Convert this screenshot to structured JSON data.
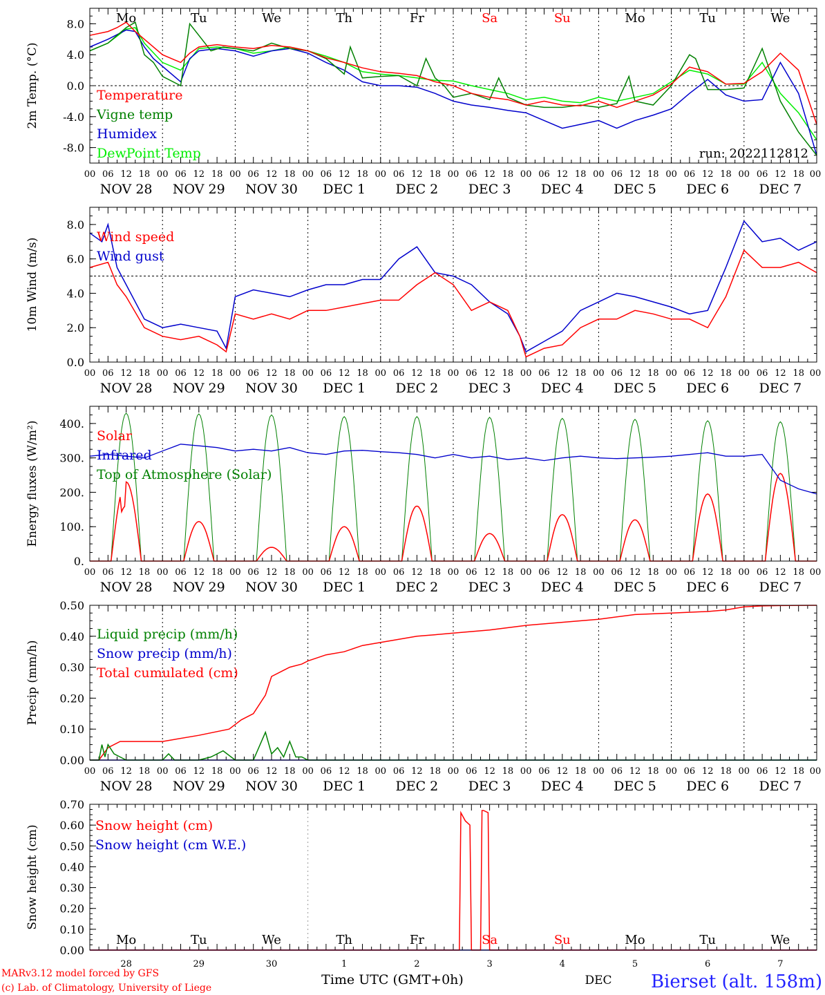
{
  "chart_data": [
    {
      "type": "line",
      "ylabel": "2m Temp. (°C)",
      "ylim": [
        -10,
        10
      ],
      "yticks": [
        -8,
        -4,
        0,
        4,
        8
      ],
      "ytick_labels": [
        "-8.0",
        "-4.0",
        "0.0",
        "4.0",
        "8.0"
      ],
      "x_unit": "hours since NOV 28 00 UTC",
      "xlim": [
        0,
        240
      ],
      "zero_line": 0,
      "weekday_labels": [
        "Mo",
        "Tu",
        "We",
        "Th",
        "Fr",
        "Sa",
        "Su",
        "Mo",
        "Tu",
        "We"
      ],
      "weekday_colors": [
        "#000000",
        "#000000",
        "#000000",
        "#000000",
        "#000000",
        "#ff0000",
        "#ff0000",
        "#000000",
        "#000000",
        "#000000"
      ],
      "run_label": "run: 2022112812",
      "legend": "top-left",
      "series": [
        {
          "name": "Temperature",
          "color": "#ff0000",
          "x": [
            0,
            6,
            9,
            12,
            15,
            18,
            24,
            30,
            33,
            36,
            42,
            48,
            54,
            60,
            66,
            72,
            78,
            84,
            90,
            96,
            102,
            108,
            114,
            120,
            126,
            132,
            138,
            144,
            150,
            156,
            162,
            168,
            174,
            180,
            186,
            192,
            198,
            204,
            210,
            216,
            222,
            228,
            234,
            240
          ],
          "y": [
            6.5,
            7.0,
            7.5,
            8.2,
            7.0,
            6.0,
            4.0,
            3.0,
            4.2,
            5.0,
            5.3,
            5.0,
            4.8,
            5.2,
            5.0,
            4.5,
            3.6,
            3.0,
            2.3,
            1.8,
            1.6,
            1.3,
            0.5,
            0.0,
            -1.0,
            -1.5,
            -1.8,
            -2.5,
            -2.0,
            -2.5,
            -2.6,
            -2.0,
            -2.8,
            -2.0,
            -1.2,
            0.2,
            2.4,
            1.8,
            0.2,
            0.3,
            1.8,
            4.2,
            2.0,
            -5.0
          ]
        },
        {
          "name": "Vigne temp",
          "color": "#008000",
          "x": [
            0,
            6,
            12,
            15,
            18,
            21,
            24,
            30,
            33,
            36,
            40,
            44,
            48,
            54,
            60,
            66,
            72,
            78,
            84,
            86,
            88,
            90,
            96,
            102,
            108,
            111,
            114,
            117,
            120,
            126,
            132,
            135,
            138,
            144,
            150,
            156,
            162,
            168,
            174,
            178,
            180,
            186,
            192,
            198,
            200,
            204,
            210,
            216,
            222,
            228,
            234,
            240
          ],
          "y": [
            4.5,
            5.5,
            7.5,
            8.2,
            4.0,
            3.0,
            1.2,
            0.0,
            8.0,
            6.5,
            4.5,
            5.0,
            4.8,
            4.5,
            5.5,
            4.8,
            4.5,
            3.5,
            1.5,
            5.0,
            3.0,
            1.0,
            1.2,
            1.3,
            0.0,
            3.5,
            1.0,
            0.0,
            -1.5,
            -1.0,
            -1.8,
            1.0,
            -1.5,
            -2.5,
            -2.8,
            -2.8,
            -2.5,
            -2.8,
            -2.3,
            1.2,
            -2.0,
            -2.5,
            0.0,
            4.0,
            3.5,
            -0.5,
            -0.5,
            -0.3,
            4.8,
            -2.0,
            -6.0,
            -9.0
          ]
        },
        {
          "name": "Humidex",
          "color": "#0000cc",
          "x": [
            0,
            6,
            12,
            15,
            18,
            21,
            24,
            30,
            33,
            36,
            42,
            48,
            54,
            60,
            66,
            72,
            78,
            84,
            90,
            96,
            102,
            108,
            114,
            120,
            126,
            132,
            138,
            144,
            150,
            156,
            162,
            168,
            174,
            180,
            186,
            192,
            198,
            204,
            210,
            216,
            222,
            228,
            234,
            240
          ],
          "y": [
            5.0,
            6.0,
            7.2,
            7.0,
            5.0,
            3.5,
            2.5,
            0.5,
            3.5,
            4.5,
            4.8,
            4.5,
            3.8,
            4.5,
            4.8,
            4.2,
            3.0,
            2.0,
            0.5,
            0.0,
            0.0,
            -0.2,
            -1.0,
            -2.0,
            -2.5,
            -2.8,
            -3.2,
            -3.5,
            -4.5,
            -5.5,
            -5.0,
            -4.5,
            -5.5,
            -4.5,
            -3.8,
            -3.0,
            -1.0,
            0.8,
            -1.2,
            -2.0,
            -1.8,
            3.0,
            -1.0,
            -9.0
          ]
        },
        {
          "name": "DewPoint Temp",
          "color": "#00ee00",
          "x": [
            0,
            6,
            12,
            15,
            18,
            24,
            30,
            36,
            42,
            48,
            54,
            60,
            66,
            72,
            78,
            84,
            90,
            96,
            102,
            108,
            114,
            120,
            126,
            132,
            138,
            144,
            150,
            156,
            162,
            168,
            174,
            180,
            186,
            192,
            198,
            204,
            210,
            216,
            222,
            228,
            234,
            240
          ],
          "y": [
            4.5,
            5.5,
            7.3,
            7.5,
            5.5,
            3.0,
            2.0,
            4.8,
            5.0,
            4.8,
            4.2,
            4.5,
            5.0,
            4.5,
            3.8,
            3.0,
            1.8,
            1.5,
            1.3,
            1.0,
            0.7,
            0.6,
            0.0,
            -0.5,
            -1.0,
            -1.8,
            -1.5,
            -2.0,
            -2.2,
            -1.5,
            -2.0,
            -1.5,
            -1.0,
            0.5,
            2.0,
            1.5,
            0.2,
            0.2,
            3.0,
            -1.0,
            -3.5,
            -7.0
          ]
        }
      ]
    },
    {
      "type": "line",
      "ylabel": "10m Wind (m/s)",
      "ylim": [
        0,
        9
      ],
      "yticks": [
        0,
        2,
        4,
        6,
        8
      ],
      "ytick_labels": [
        "0.0",
        "2.0",
        "4.0",
        "6.0",
        "8.0"
      ],
      "xlim": [
        0,
        240
      ],
      "zero_line": 5,
      "legend": "top-left",
      "series": [
        {
          "name": "Wind speed",
          "color": "#ff0000",
          "x": [
            0,
            6,
            9,
            12,
            18,
            24,
            30,
            36,
            42,
            45,
            48,
            54,
            60,
            66,
            72,
            78,
            84,
            90,
            96,
            102,
            108,
            114,
            120,
            126,
            132,
            138,
            142,
            144,
            150,
            156,
            162,
            168,
            174,
            180,
            186,
            192,
            198,
            204,
            210,
            216,
            222,
            228,
            234,
            240
          ],
          "y": [
            5.5,
            5.8,
            4.5,
            3.8,
            2.0,
            1.5,
            1.3,
            1.5,
            1.0,
            0.6,
            2.8,
            2.5,
            2.8,
            2.5,
            3.0,
            3.0,
            3.2,
            3.4,
            3.6,
            3.6,
            4.5,
            5.2,
            4.5,
            3.0,
            3.5,
            3.0,
            1.5,
            0.3,
            0.8,
            1.0,
            2.0,
            2.5,
            2.5,
            3.0,
            2.8,
            2.5,
            2.5,
            2.0,
            3.8,
            6.5,
            5.5,
            5.5,
            5.8,
            5.2
          ]
        },
        {
          "name": "Wind gust",
          "color": "#0000cc",
          "x": [
            0,
            4,
            6,
            9,
            12,
            18,
            24,
            30,
            36,
            42,
            45,
            48,
            54,
            60,
            66,
            72,
            78,
            84,
            90,
            96,
            102,
            108,
            114,
            120,
            126,
            132,
            138,
            142,
            144,
            150,
            156,
            162,
            168,
            174,
            180,
            186,
            192,
            198,
            204,
            210,
            216,
            222,
            228,
            234,
            240
          ],
          "y": [
            7.5,
            7.0,
            8.0,
            5.5,
            4.5,
            2.5,
            2.0,
            2.2,
            2.0,
            1.8,
            0.8,
            3.8,
            4.2,
            4.0,
            3.8,
            4.2,
            4.5,
            4.5,
            4.8,
            4.8,
            6.0,
            6.7,
            5.2,
            5.0,
            4.5,
            3.5,
            2.8,
            1.5,
            0.6,
            1.2,
            1.8,
            3.0,
            3.5,
            4.0,
            3.8,
            3.5,
            3.2,
            2.8,
            3.0,
            5.5,
            8.2,
            7.0,
            7.2,
            6.5,
            7.0
          ]
        }
      ]
    },
    {
      "type": "line",
      "ylabel": "Energy fluxes (W/m²)",
      "ylim": [
        0,
        450
      ],
      "yticks": [
        0,
        100,
        200,
        300,
        400
      ],
      "ytick_labels": [
        "0.",
        "100.",
        "200.",
        "300.",
        "400."
      ],
      "xlim": [
        0,
        240
      ],
      "legend": "top-left",
      "solar_peaks": [
        230,
        115,
        40,
        100,
        160,
        80,
        135,
        120,
        195,
        255
      ],
      "toa_peaks": [
        430,
        428,
        425,
        420,
        420,
        418,
        415,
        412,
        408,
        405
      ],
      "series": [
        {
          "name": "Solar",
          "color": "#ff0000"
        },
        {
          "name": "Infrared",
          "color": "#0000cc",
          "x": [
            0,
            6,
            12,
            18,
            24,
            30,
            36,
            42,
            48,
            54,
            60,
            66,
            72,
            78,
            84,
            90,
            96,
            102,
            108,
            114,
            120,
            126,
            132,
            138,
            144,
            150,
            156,
            162,
            168,
            174,
            180,
            186,
            192,
            198,
            204,
            210,
            216,
            222,
            228,
            234,
            240
          ],
          "y": [
            305,
            310,
            305,
            300,
            320,
            340,
            335,
            330,
            320,
            325,
            320,
            330,
            315,
            310,
            320,
            322,
            318,
            315,
            310,
            300,
            310,
            300,
            305,
            295,
            300,
            292,
            300,
            305,
            300,
            298,
            300,
            302,
            305,
            310,
            315,
            305,
            305,
            310,
            235,
            210,
            195
          ]
        },
        {
          "name": "Top of Atmosphere (Solar)",
          "color": "#008000"
        }
      ]
    },
    {
      "type": "line",
      "ylabel": "Precip (mm/h)",
      "ylim": [
        0,
        0.5
      ],
      "yticks": [
        0,
        0.1,
        0.2,
        0.3,
        0.4,
        0.5
      ],
      "ytick_labels": [
        "0.00",
        "0.10",
        "0.20",
        "0.30",
        "0.40",
        "0.50"
      ],
      "xlim": [
        0,
        240
      ],
      "legend": "top-left",
      "series": [
        {
          "name": "Liquid precip (mm/h)",
          "color": "#008000",
          "x": [
            0,
            3,
            4,
            5,
            6,
            8,
            10,
            12,
            24,
            26,
            28,
            36,
            40,
            44,
            48,
            54,
            58,
            60,
            62,
            64,
            66,
            68,
            70,
            72,
            80,
            240
          ],
          "y": [
            0,
            0,
            0.05,
            0.01,
            0.05,
            0.02,
            0.01,
            0,
            0,
            0.02,
            0,
            0,
            0.01,
            0.03,
            0,
            0,
            0.09,
            0.02,
            0.04,
            0.01,
            0.06,
            0.01,
            0.01,
            0,
            0,
            0
          ]
        },
        {
          "name": "Snow precip (mm/h)",
          "color": "#0000cc",
          "x": [
            0,
            240
          ],
          "y": [
            0,
            0
          ]
        },
        {
          "name": "Total cumulated (cm)",
          "color": "#ff0000",
          "x": [
            0,
            3,
            6,
            10,
            24,
            36,
            46,
            50,
            54,
            58,
            60,
            64,
            66,
            70,
            72,
            78,
            84,
            90,
            96,
            102,
            108,
            114,
            120,
            132,
            144,
            156,
            168,
            180,
            192,
            204,
            210,
            216,
            222,
            228,
            240
          ],
          "y": [
            0,
            0,
            0.04,
            0.06,
            0.06,
            0.08,
            0.1,
            0.13,
            0.15,
            0.21,
            0.27,
            0.29,
            0.3,
            0.31,
            0.32,
            0.34,
            0.35,
            0.37,
            0.38,
            0.39,
            0.4,
            0.405,
            0.41,
            0.42,
            0.435,
            0.445,
            0.455,
            0.47,
            0.475,
            0.48,
            0.485,
            0.495,
            0.498,
            0.499,
            0.5
          ]
        }
      ]
    },
    {
      "type": "line",
      "ylabel": "Snow height (cm)",
      "ylim": [
        0,
        0.7
      ],
      "yticks": [
        0,
        0.1,
        0.2,
        0.3,
        0.4,
        0.5,
        0.6,
        0.7
      ],
      "ytick_labels": [
        "0.00",
        "0.10",
        "0.20",
        "0.30",
        "0.40",
        "0.50",
        "0.60",
        "0.70"
      ],
      "xlim": [
        0,
        240
      ],
      "legend": "top-left",
      "weekday_labels": [
        "Mo",
        "Tu",
        "We",
        "Th",
        "Fr",
        "Sa",
        "Su",
        "Mo",
        "Tu",
        "We"
      ],
      "weekday_colors": [
        "#000000",
        "#000000",
        "#000000",
        "#000000",
        "#000000",
        "#ff0000",
        "#ff0000",
        "#000000",
        "#000000",
        "#000000"
      ],
      "day_numbers": [
        "28",
        "29",
        "30",
        "1",
        "2",
        "3",
        "4",
        "5",
        "6",
        "7"
      ],
      "month_label": "DEC",
      "series": [
        {
          "name": "Snow height (cm)",
          "color": "#ff0000",
          "x": [
            0,
            122,
            122.5,
            124,
            125.5,
            126,
            129,
            129.5,
            130,
            131.5,
            132,
            240
          ],
          "y": [
            0,
            0,
            0.66,
            0.62,
            0.6,
            0,
            0,
            0.67,
            0.67,
            0.66,
            0,
            0
          ]
        },
        {
          "name": "Snow height (cm W.E.)",
          "color": "#0000cc",
          "x": [
            0,
            240
          ],
          "y": [
            0,
            0
          ]
        }
      ]
    }
  ],
  "x_axis": {
    "hour_labels": [
      "00",
      "06",
      "12",
      "18"
    ],
    "final_hour_label": "00",
    "date_labels": [
      "NOV 28",
      "NOV 29",
      "NOV 30",
      "DEC  1",
      "DEC  2",
      "DEC  3",
      "DEC  4",
      "DEC  5",
      "DEC  6",
      "DEC  7"
    ]
  },
  "footer": {
    "model_line": "MARv3.12 model forced by GFS",
    "credit_line": "(c) Lab. of Climatology, University of Liege",
    "xlabel": "Time UTC (GMT+0h)",
    "station": "Bierset (alt. 158m)"
  },
  "colors": {
    "temperature": "#ff0000",
    "vigne": "#008000",
    "humidex": "#0000cc",
    "dewpoint": "#00ee00",
    "footer_red": "#ff0000",
    "station_blue": "#2222ff"
  }
}
